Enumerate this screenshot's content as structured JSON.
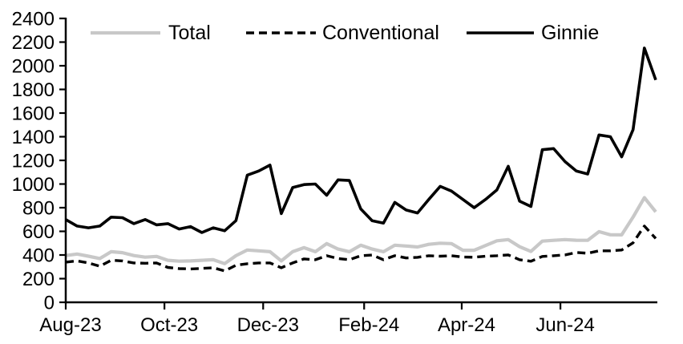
{
  "legend": {
    "items": [
      {
        "label": "Total",
        "swatch": "solid-line",
        "color": "#c8c8c8"
      },
      {
        "label": "Conventional",
        "swatch": "dashed-line",
        "color": "#000000"
      },
      {
        "label": "Ginnie",
        "swatch": "solid-line",
        "color": "#000000"
      }
    ]
  },
  "chart_data": {
    "type": "line",
    "title": "",
    "xlabel": "",
    "ylabel": "",
    "grid": false,
    "legend_position": "top",
    "ylim": [
      0,
      2400
    ],
    "y_ticks": [
      0,
      200,
      400,
      600,
      800,
      1000,
      1200,
      1400,
      1600,
      1800,
      2000,
      2200,
      2400
    ],
    "x_unit": "week",
    "x_tick_labels": [
      "Aug-23",
      "Oct-23",
      "Dec-23",
      "Feb-24",
      "Apr-24",
      "Jun-24"
    ],
    "x_tick_week_offsets": [
      0,
      8.7,
      17.4,
      26.3,
      34.9,
      43.6
    ],
    "n_points": 53,
    "series": [
      {
        "name": "Total",
        "color": "#c8c8c8",
        "dash": "none",
        "values": [
          395,
          408,
          390,
          370,
          428,
          420,
          395,
          382,
          388,
          355,
          348,
          350,
          355,
          360,
          327,
          394,
          442,
          435,
          428,
          350,
          428,
          462,
          428,
          496,
          450,
          428,
          483,
          450,
          428,
          483,
          476,
          468,
          490,
          500,
          496,
          440,
          440,
          480,
          520,
          530,
          470,
          430,
          517,
          524,
          530,
          525,
          524,
          597,
          571,
          570,
          720,
          885,
          765
        ]
      },
      {
        "name": "Conventional",
        "color": "#000000",
        "dash": "dashed",
        "values": [
          340,
          350,
          333,
          305,
          355,
          350,
          333,
          330,
          333,
          295,
          285,
          282,
          287,
          292,
          265,
          313,
          326,
          333,
          333,
          292,
          333,
          367,
          360,
          394,
          370,
          360,
          394,
          400,
          360,
          394,
          375,
          380,
          394,
          390,
          394,
          383,
          381,
          390,
          394,
          401,
          360,
          347,
          388,
          394,
          401,
          421,
          415,
          435,
          435,
          442,
          503,
          645,
          540
        ]
      },
      {
        "name": "Ginnie",
        "color": "#000000",
        "dash": "none",
        "values": [
          700,
          645,
          630,
          645,
          720,
          715,
          665,
          700,
          655,
          665,
          620,
          640,
          590,
          630,
          605,
          690,
          1075,
          1110,
          1160,
          750,
          970,
          995,
          1000,
          905,
          1035,
          1030,
          790,
          690,
          670,
          845,
          780,
          755,
          870,
          980,
          940,
          870,
          800,
          870,
          950,
          1150,
          855,
          810,
          1290,
          1300,
          1190,
          1110,
          1085,
          1415,
          1400,
          1230,
          1460,
          2150,
          1880
        ]
      }
    ]
  }
}
